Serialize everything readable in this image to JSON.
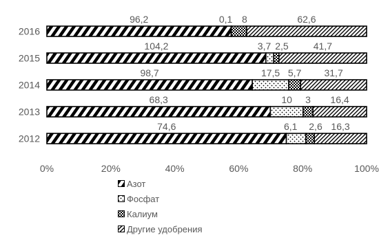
{
  "chart_data": {
    "type": "bar",
    "orientation": "horizontal",
    "stacked": "percent",
    "categories": [
      "2016",
      "2015",
      "2014",
      "2013",
      "2012"
    ],
    "series": [
      {
        "name": "Азот",
        "values": [
          96.2,
          104.2,
          98.7,
          68.3,
          74.6
        ],
        "labels": [
          "96,2",
          "104,2",
          "98,7",
          "68,3",
          "74,6"
        ],
        "pattern": "diag-stripes"
      },
      {
        "name": "Фосфат",
        "values": [
          0.1,
          3.7,
          17.5,
          10,
          6.1
        ],
        "labels": [
          "0,1",
          "3,7",
          "17,5",
          "10",
          "6,1"
        ],
        "pattern": "dots"
      },
      {
        "name": "Калиум",
        "values": [
          8,
          2.5,
          5.7,
          3,
          2.6
        ],
        "labels": [
          "8",
          "2,5",
          "5,7",
          "3",
          "2,6"
        ],
        "pattern": "checker"
      },
      {
        "name": "Другие удобрения",
        "values": [
          62.6,
          41.7,
          31.7,
          16.4,
          16.3
        ],
        "labels": [
          "62,6",
          "41,7",
          "31,7",
          "16,4",
          "16,3"
        ],
        "pattern": "fine-diag"
      }
    ],
    "xticks": [
      "0%",
      "20%",
      "40%",
      "60%",
      "80%",
      "100%"
    ],
    "xlim": [
      0,
      100
    ],
    "legend_position": "bottom",
    "grid": false,
    "colors": {
      "stroke": "#000000",
      "text": "#595959"
    }
  }
}
